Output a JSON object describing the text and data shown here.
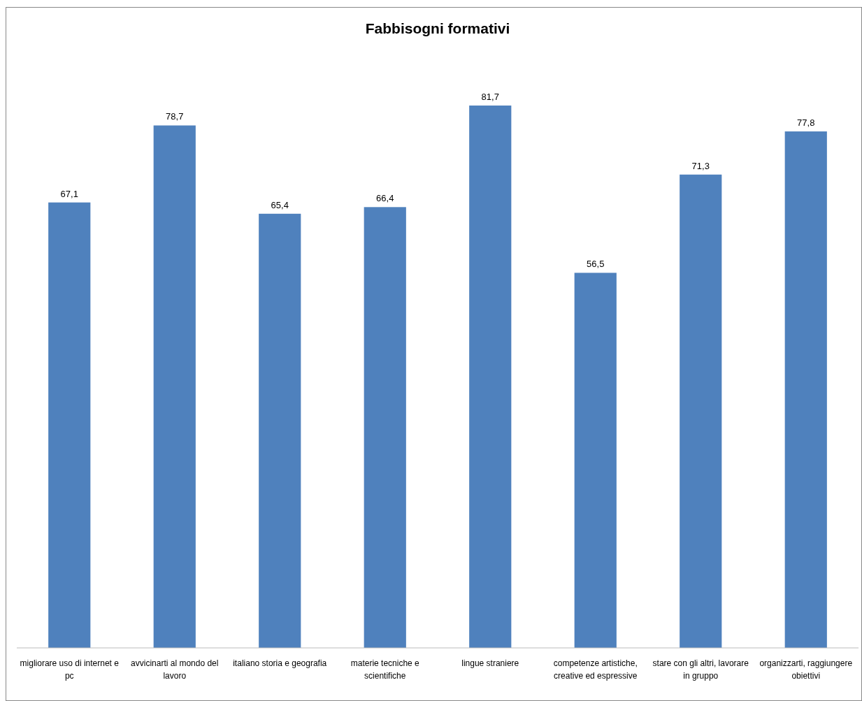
{
  "chart_data": {
    "type": "bar",
    "title": "Fabbisogni formativi",
    "categories": [
      "migliorare uso di internet e pc",
      "avvicinarti al mondo del lavoro",
      "italiano storia e geografia",
      "materie tecniche e scientifiche",
      "lingue straniere",
      "competenze artistiche, creative ed espressive",
      "stare con gli altri, lavorare in gruppo",
      "organizzarti, raggiungere obiettivi"
    ],
    "values": [
      67.1,
      78.7,
      65.4,
      66.4,
      81.7,
      56.5,
      71.3,
      77.8
    ],
    "value_labels": [
      "67,1",
      "78,7",
      "65,4",
      "66,4",
      "81,7",
      "56,5",
      "71,3",
      "77,8"
    ],
    "color": "#4f81bd"
  }
}
